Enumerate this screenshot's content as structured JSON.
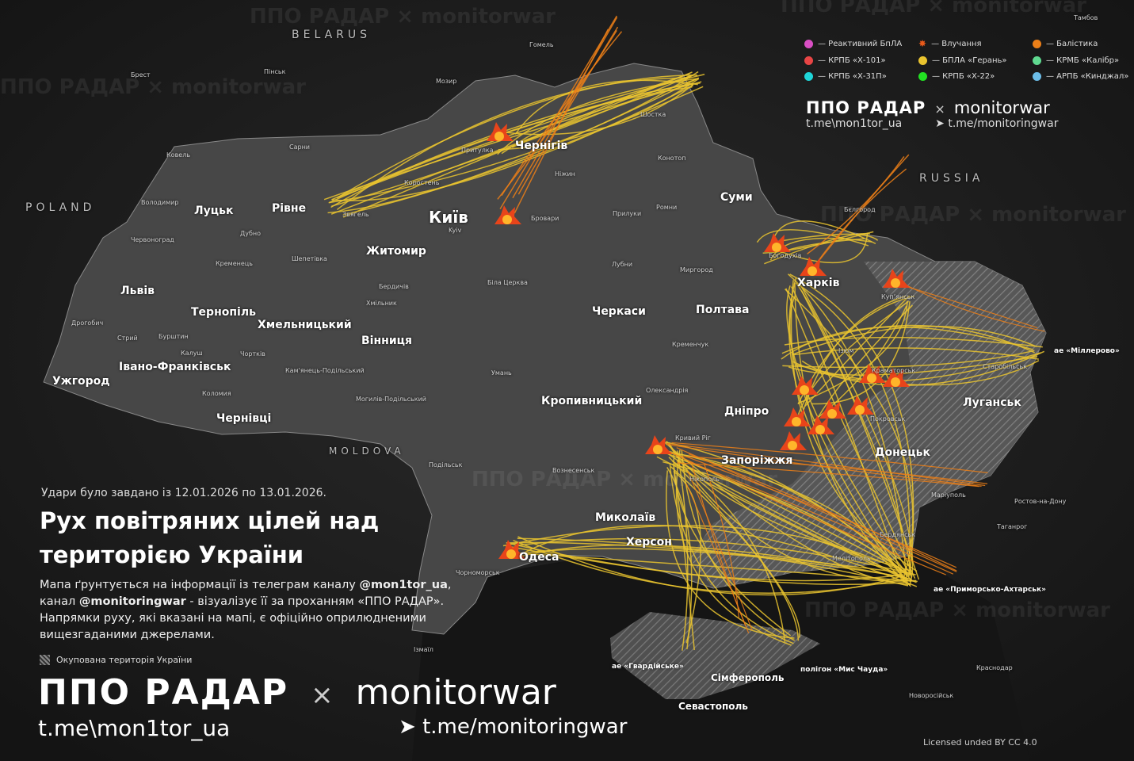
{
  "countries": [
    "BELARUS",
    "POLAND",
    "RUSSIA",
    "MOLDOVA"
  ],
  "cities": [
    "Київ",
    "Kyiv",
    "Чернігів",
    "Суми",
    "Харків",
    "Луцьк",
    "Рівне",
    "Житомир",
    "Львів",
    "Тернопіль",
    "Хмельницький",
    "Вінниця",
    "Черкаси",
    "Полтава",
    "Ужгород",
    "Івано-Франківськ",
    "Чернівці",
    "Кропивницький",
    "Дніпро",
    "Запоріжжя",
    "Донецьк",
    "Луганськ",
    "Миколаїв",
    "Херсон",
    "Одеса",
    "Сімферополь",
    "Севастополь"
  ],
  "towns": [
    "Гомель",
    "Мозир",
    "Пінськ",
    "Брест",
    "Ковель",
    "Сарни",
    "Коростень",
    "Прилуки",
    "Ромни",
    "Конотоп",
    "Бровари",
    "Біла Церква",
    "Умань",
    "Кременчук",
    "Лубни",
    "Миргород",
    "Ізюм",
    "Купʼянськ",
    "Богодухів",
    "Бєлгород",
    "Краматорськ",
    "Покровськ",
    "Маріуполь",
    "Мелітополь",
    "Бердянськ",
    "Нікополь",
    "Кривий Ріг",
    "Олександрія",
    "Вознесенськ",
    "Подільськ",
    "Ізмаїл",
    "Чорноморськ",
    "Старобільськ",
    "Ростов-на-Дону",
    "Таганрог",
    "Краснодар",
    "Новоросійськ",
    "Тамбов",
    "Шостка",
    "Ніжин",
    "Звягель",
    "Дубно",
    "Кременець",
    "Шепетівка",
    "Бердичів",
    "Хмільник",
    "Могилів-Подільський",
    "Кам'янець-Подільський",
    "Коломия",
    "Дрогобич",
    "Стрий",
    "Калуш",
    "Бурштин",
    "Чортків",
    "Володимир",
    "Червоноград",
    "Притулка"
  ],
  "airfields": [
    "ае «Міллерово»",
    "ае «Приморсько-Ахтарськ»",
    "ае «Гвардійське»",
    "полігон «Мис Чауда»"
  ],
  "watermarks": {
    "ppo": "ППО РАДАР",
    "x": "×",
    "mw": "monitorwar",
    "tg1": "t.me\\mon1tor_ua",
    "tg2": "t.me/monitoringwar"
  },
  "legend": [
    {
      "label": "— Реактивний БпЛА",
      "color": "#d94fc4",
      "type": "dot"
    },
    {
      "label": "— Влучання",
      "color": "#e85a1a",
      "type": "explosion"
    },
    {
      "label": "— Балістика",
      "color": "#ec7f18",
      "type": "dot"
    },
    {
      "label": "— КРПБ «Х-101»",
      "color": "#e84545",
      "type": "dot"
    },
    {
      "label": "— БПЛА «Герань»",
      "color": "#eac42f",
      "type": "dot"
    },
    {
      "label": "— КРМБ «Калібр»",
      "color": "#5fd88f",
      "type": "dot"
    },
    {
      "label": "— КРПБ «Х-31П»",
      "color": "#1fd5d8",
      "type": "dot"
    },
    {
      "label": "— КРПБ «Х-22»",
      "color": "#22e022",
      "type": "dot"
    },
    {
      "label": "— АРПБ «Кинджал»",
      "color": "#6cbde8",
      "type": "dot"
    }
  ],
  "brand": {
    "ppo": "ППО РАДАР",
    "x": "×",
    "mw": "monitorwar",
    "tg1": "t.me\\mon1tor_ua",
    "tg2": "t.me/monitoringwar",
    "telegram_icon": "telegram-icon"
  },
  "info": {
    "date": "Удари було завдано із 12.01.2026 по 13.01.2026.",
    "title": "Рух повітряних цілей над територією України",
    "desc_1": "Мапа ґрунтується на інформації із телеграм каналу ",
    "desc_handle1": "@mon1tor_ua",
    "desc_2": ", канал ",
    "desc_handle2": "@monitoringwar",
    "desc_3": " - візуалізує її за проханням «ППО РАДАР». Напрямки руху, які вказані на мапі, є офіційно оприлюдненими вищезгаданими джерелами.",
    "occupied": "Окупована територія України"
  },
  "license": "Licensed unded BY CC 4.0",
  "colors": {
    "shahed": "#eac42f",
    "ballistic": "#ec7f18",
    "land": "#4a4a4a",
    "background": "#1b1b1b"
  }
}
